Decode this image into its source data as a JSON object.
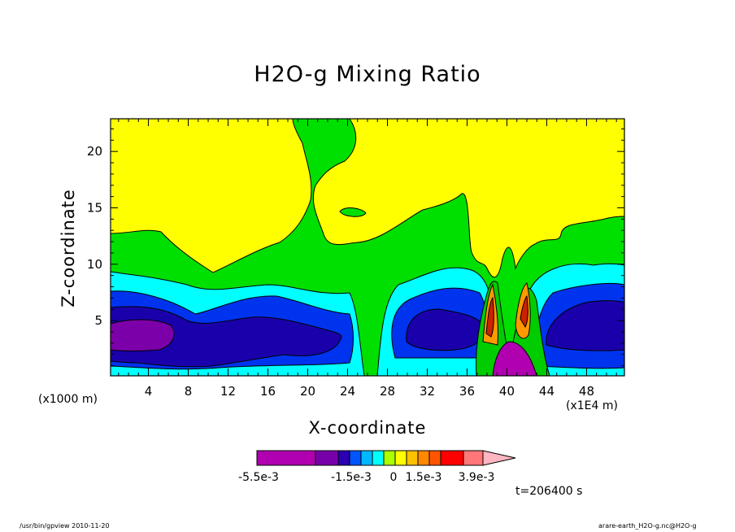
{
  "chart_data": {
    "type": "heatmap",
    "title": "H2O-g Mixing Ratio",
    "xlabel": "X-coordinate",
    "ylabel": "Z-coordinate",
    "x_unit_label": "(x1E4 m)",
    "y_unit_label": "(x1000 m)",
    "x_ticks": [
      4,
      8,
      12,
      16,
      20,
      24,
      28,
      32,
      36,
      40,
      44,
      48
    ],
    "y_ticks": [
      5,
      10,
      15,
      20
    ],
    "xlim": [
      0.2,
      51.8
    ],
    "ylim": [
      0.1,
      22.9
    ],
    "colorbar": {
      "labels": [
        "-5.5e-3",
        "-1.5e-3",
        "0",
        "1.5e-3",
        "3.9e-3"
      ],
      "colors": [
        "#b000b0",
        "#7700aa",
        "#2a00b0",
        "#0055ff",
        "#00b8ff",
        "#00ffff",
        "#aaff00",
        "#ffff00",
        "#ffc000",
        "#ff8800",
        "#ff5500",
        "#ff0000",
        "#ff7777",
        "#ffb6c1"
      ]
    },
    "regions": [
      {
        "name": "low-ratio-core",
        "color": "#7c00aa",
        "x": [
          0.5,
          6.5
        ],
        "z": [
          2.0,
          5.0
        ]
      },
      {
        "name": "dark-blue-layer",
        "color": "#1a00aa",
        "x": [
          0.2,
          25.0
        ],
        "z": [
          0.8,
          6.5
        ]
      },
      {
        "name": "blue-layer-right",
        "color": "#1a00aa",
        "x": [
          29.0,
          37.0
        ],
        "z": [
          1.0,
          6.0
        ]
      },
      {
        "name": "cyan-layer",
        "color": "#00ffff",
        "x": [
          0.2,
          51.8
        ],
        "z": [
          0.1,
          9.0
        ]
      },
      {
        "name": "green-layer",
        "color": "#00e000",
        "x": [
          0.2,
          51.8
        ],
        "z": [
          0.1,
          13.0
        ]
      },
      {
        "name": "upper-yellow",
        "color": "#ffff00",
        "x": [
          0.2,
          51.8
        ],
        "z": [
          9.0,
          22.9
        ]
      },
      {
        "name": "convective-plume",
        "color": "#ff9900",
        "x": [
          36.5,
          42.5
        ],
        "z": [
          0.1,
          8.5
        ]
      }
    ]
  },
  "time_label": "t=206400 s",
  "footer": {
    "left": "/usr/bin/gpview   2010-11-20",
    "right": "arare-earth_H2O-g.nc@H2O-g"
  }
}
